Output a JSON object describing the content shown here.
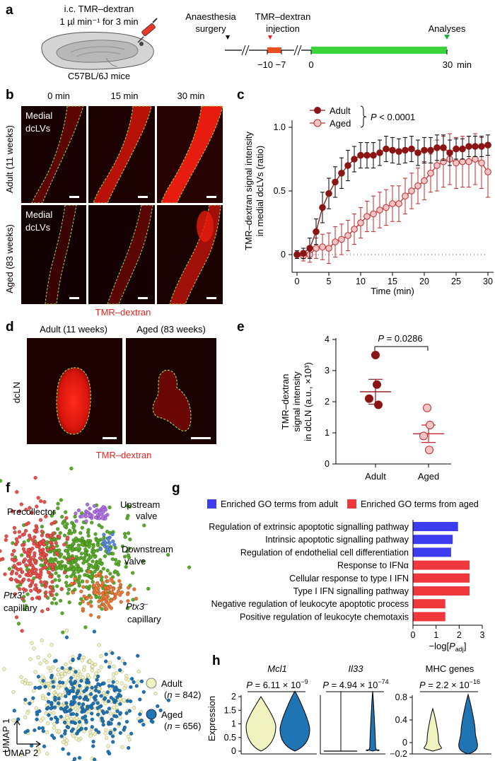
{
  "colors": {
    "adult_dark": "#8b1414",
    "aged_light": "#f4c4c4",
    "aged_line": "#c0282a",
    "adult_go": "#3c3cf0",
    "aged_go": "#f0373c",
    "timeline_green": "#3cd43c",
    "timeline_red": "#e85020",
    "umap_adult": "#f0f2c0",
    "umap_aged": "#1f74b4",
    "cluster_precollector": "#e8504c",
    "cluster_main": "#5aaa2a",
    "cluster_upstream": "#b070e0",
    "cluster_downstream": "#5a8ad8",
    "cluster_ptx3neg": "#e87838",
    "tmr_label": "#e8231f"
  },
  "panel_a": {
    "label": "a",
    "injection_line1": "i.c. TMR–dextran",
    "injection_line2": "1 µl min⁻¹ for 3 min",
    "mouse_label": "C57BL/6J mice",
    "step1_line1": "Anaesthesia",
    "step1_line2": "surgery",
    "step2_line1": "TMR–dextran",
    "step2_line2": "injection",
    "step3": "Analyses",
    "ticks": [
      "−10",
      "−7",
      "0",
      "30"
    ],
    "unit": "min"
  },
  "panel_b": {
    "label": "b",
    "col_labels": [
      "0 min",
      "15 min",
      "30 min"
    ],
    "row_labels": [
      "Adult (11 weeks)",
      "Aged (83 weeks)"
    ],
    "inset_line1": "Medial",
    "inset_line2": "dcLVs",
    "caption": "TMR–dextran"
  },
  "panel_c": {
    "label": "c",
    "legend_adult": "Adult",
    "legend_aged": "Aged",
    "p_symbol": "P",
    "p_rest": " < 0.0001",
    "ylabel_line1": "TMR–dextran signal intensity",
    "ylabel_line2": "in medial dcLVs (ratio)",
    "xlabel": "Time (min)",
    "yticks": [
      "1.0",
      "0.5",
      "0"
    ],
    "xticks": [
      "0",
      "5",
      "10",
      "15",
      "20",
      "25",
      "30"
    ]
  },
  "panel_d": {
    "label": "d",
    "col_labels": [
      "Adult (11 weeks)",
      "Aged (83 weeks)"
    ],
    "row_label": "dcLN",
    "caption": "TMR–dextran"
  },
  "panel_e": {
    "label": "e",
    "p_symbol": "P",
    "p_rest": " = 0.0286",
    "ylabel_line1": "TMR–dextran",
    "ylabel_line2": "signal intensity",
    "ylabel_line3": "in dcLN (a.u., ×10³)",
    "yticks": [
      "4",
      "3",
      "2",
      "1",
      "0"
    ],
    "xticks": [
      "Adult",
      "Aged"
    ]
  },
  "panel_f": {
    "label": "f",
    "clusters": {
      "precollector": "Precollector",
      "upstream_line1": "Upstream",
      "upstream_line2": "valve",
      "downstream_line1": "Downstream",
      "downstream_line2": "valve",
      "ptx3pos_gene": "Ptx3",
      "ptx3pos_sign": "+",
      "ptx3neg_gene": "Ptx3",
      "ptx3neg_sign": "–",
      "capillary": "capillary"
    },
    "legend_adult": "Adult",
    "legend_adult_n_pre": "(",
    "legend_adult_n_var": "n",
    "legend_adult_n_val": " = 842)",
    "legend_aged": "Aged",
    "legend_aged_n_pre": "(",
    "legend_aged_n_var": "n",
    "legend_aged_n_val": " = 656)",
    "umap1": "UMAP 1",
    "umap2": "UMAP 2"
  },
  "panel_g": {
    "label": "g",
    "legend_adult": "Enriched GO terms from adult",
    "legend_aged": "Enriched GO terms from aged",
    "xlabel_pre": "−log[",
    "xlabel_var": "P",
    "xlabel_sub": "adj",
    "xlabel_post": "]",
    "xticks": [
      "0",
      "1",
      "2",
      "3"
    ]
  },
  "panel_h": {
    "label": "h",
    "ylabel": "Expression",
    "titles": [
      "Mcl1",
      "Il33",
      "MHC genes"
    ],
    "p_symbol": "P",
    "p_mantissa": [
      "6.11",
      "4.94",
      "2.2"
    ],
    "p_exponent": [
      "−9",
      "−74",
      "−16"
    ],
    "p_eq": " = ",
    "p_times": " × 10",
    "yticks_left": [
      "2",
      "1.5",
      "1",
      "0.5",
      "0"
    ],
    "yticks_right": [
      "0.8",
      "0.4",
      "0",
      "−0.2"
    ]
  },
  "chart_data": [
    {
      "id": "c",
      "type": "line",
      "title": "",
      "xlabel": "Time (min)",
      "ylabel": "TMR–dextran signal intensity in medial dcLVs (ratio)",
      "xlim": [
        -0.5,
        30.5
      ],
      "ylim": [
        -0.15,
        1.05
      ],
      "series": [
        {
          "name": "Adult",
          "x": [
            0,
            1,
            2,
            3,
            4,
            5,
            6,
            7,
            8,
            9,
            10,
            11,
            12,
            13,
            14,
            15,
            16,
            17,
            18,
            19,
            20,
            21,
            22,
            23,
            24,
            25,
            26,
            27,
            28,
            29,
            30
          ],
          "y": [
            0,
            0.01,
            0.05,
            0.18,
            0.37,
            0.48,
            0.57,
            0.64,
            0.7,
            0.75,
            0.78,
            0.78,
            0.78,
            0.8,
            0.83,
            0.82,
            0.81,
            0.82,
            0.83,
            0.8,
            0.82,
            0.82,
            0.84,
            0.84,
            0.8,
            0.83,
            0.83,
            0.85,
            0.85,
            0.85,
            0.86
          ],
          "err": [
            0.03,
            0.04,
            0.08,
            0.1,
            0.12,
            0.12,
            0.12,
            0.12,
            0.12,
            0.1,
            0.1,
            0.1,
            0.1,
            0.1,
            0.1,
            0.1,
            0.1,
            0.1,
            0.1,
            0.1,
            0.1,
            0.1,
            0.1,
            0.1,
            0.1,
            0.08,
            0.08,
            0.08,
            0.08,
            0.08,
            0.08
          ]
        },
        {
          "name": "Aged",
          "x": [
            0,
            1,
            2,
            3,
            4,
            5,
            6,
            7,
            8,
            9,
            10,
            11,
            12,
            13,
            14,
            15,
            16,
            17,
            18,
            19,
            20,
            21,
            22,
            23,
            24,
            25,
            26,
            27,
            28,
            29,
            30
          ],
          "y": [
            0,
            -0.01,
            0,
            0.05,
            0.06,
            0.05,
            0.1,
            0.12,
            0.15,
            0.2,
            0.25,
            0.3,
            0.32,
            0.35,
            0.37,
            0.4,
            0.4,
            0.46,
            0.5,
            0.54,
            0.58,
            0.64,
            0.7,
            0.73,
            0.75,
            0.72,
            0.73,
            0.73,
            0.75,
            0.72,
            0.65
          ],
          "err": [
            0.03,
            0.04,
            0.06,
            0.08,
            0.1,
            0.12,
            0.12,
            0.12,
            0.12,
            0.12,
            0.12,
            0.12,
            0.14,
            0.14,
            0.14,
            0.14,
            0.14,
            0.14,
            0.14,
            0.14,
            0.15,
            0.15,
            0.2,
            0.2,
            0.2,
            0.2,
            0.2,
            0.2,
            0.2,
            0.2,
            0.2
          ]
        }
      ],
      "annotation": "P < 0.0001"
    },
    {
      "id": "e",
      "type": "scatter",
      "categories": [
        "Adult",
        "Aged"
      ],
      "points": [
        [
          3.5,
          2.55,
          2.1,
          1.9
        ],
        [
          1.8,
          1.25,
          0.9,
          0.45
        ]
      ],
      "mean": [
        2.32,
        0.97
      ],
      "sem": [
        0.4,
        0.28
      ],
      "ylim": [
        0,
        4
      ],
      "ylabel": "TMR–dextran signal intensity in dcLN (a.u., ×10³)",
      "annotation": "P = 0.0286"
    },
    {
      "id": "g",
      "type": "bar",
      "orientation": "horizontal",
      "categories": [
        "Regulation of extrinsic apoptotic signalling pathway",
        "Intrinsic apoptotic signalling pathway",
        "Regulation of endothelial cell differentiation",
        "Response to IFNα",
        "Cellular response to type I IFN",
        "Type I IFN signalling pathway",
        "Negative regulation of leukocyte apoptotic process",
        "Positive regulation of leukocyte chemotaxis"
      ],
      "values": [
        1.95,
        1.72,
        1.65,
        2.45,
        2.45,
        2.45,
        1.4,
        1.4
      ],
      "groups": [
        "adult",
        "adult",
        "adult",
        "aged",
        "aged",
        "aged",
        "aged",
        "aged"
      ],
      "xlim": [
        0,
        3
      ],
      "xlabel": "−log[P adj]"
    },
    {
      "id": "h",
      "type": "violin",
      "panels": [
        {
          "title": "Mcl1",
          "p": "6.11 × 10−9",
          "ylim": [
            0,
            2.2
          ],
          "adult_median": 0.9,
          "aged_median": 0.8
        },
        {
          "title": "Il33",
          "p": "4.94 × 10−74",
          "ylim": [
            0,
            2.2
          ],
          "adult_median": 0,
          "aged_median": 0
        },
        {
          "title": "MHC genes",
          "p": "2.2 × 10−16",
          "ylim": [
            -0.2,
            0.9
          ],
          "adult_median": 0.05,
          "aged_median": 0.2
        }
      ],
      "ylabel": "Expression"
    }
  ]
}
